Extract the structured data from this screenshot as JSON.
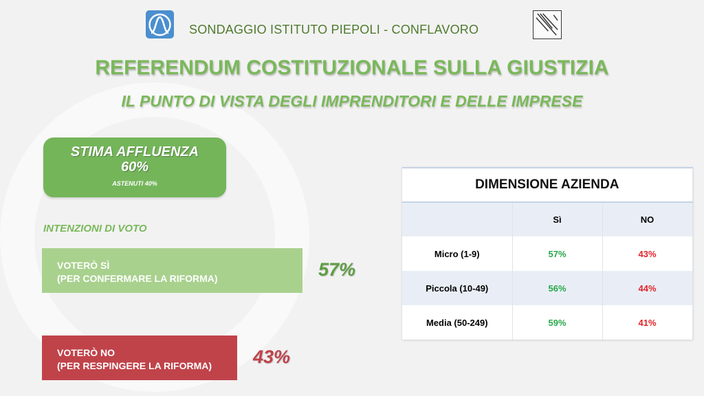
{
  "header": {
    "text": "SONDAGGIO ISTITUTO PIEPOLI - CONFLAVORO",
    "left_logo": "piepoli-logo",
    "right_logo": "conflavoro-logo"
  },
  "title": "REFERENDUM COSTITUZIONALE SULLA GIUSTIZIA",
  "subtitle": "IL PUNTO DI VISTA DEGLI IMPRENDITORI E DELLE IMPRESE",
  "stima": {
    "label": "STIMA AFFLUENZA",
    "value": "60%",
    "sub": "ASTENUTI 40%"
  },
  "intenzioni": {
    "label": "INTENZIONI DI VOTO",
    "yes": {
      "line1": "VOTERÒ SÌ",
      "line2": "(PER CONFERMARE LA RIFORMA)",
      "value": "57%",
      "color": "#a9d18e"
    },
    "no": {
      "line1": "VOTERÒ NO",
      "line2": "(PER RESPINGERE LA RIFORMA)",
      "value": "43%",
      "color": "#c0434a"
    }
  },
  "table": {
    "title": "DIMENSIONE AZIENDA",
    "columns": [
      "",
      "Sì",
      "NO"
    ],
    "rows": [
      [
        "Micro (1-9)",
        "57%",
        "43%"
      ],
      [
        "Piccola (10-49)",
        "56%",
        "44%"
      ],
      [
        "Media (50-249)",
        "59%",
        "41%"
      ]
    ]
  }
}
